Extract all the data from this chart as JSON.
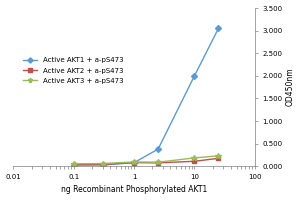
{
  "title": "",
  "xlabel": "ng Recombinant Phosphorylated AKT1",
  "ylabel": "OD450nm",
  "x_values": [
    0.1,
    0.3,
    1.0,
    2.5,
    10.0,
    25.0
  ],
  "akt1_y": [
    0.025,
    0.03,
    0.08,
    0.38,
    2.0,
    3.05
  ],
  "akt2_y": [
    0.035,
    0.038,
    0.08,
    0.075,
    0.11,
    0.175
  ],
  "akt3_y": [
    0.055,
    0.06,
    0.095,
    0.09,
    0.185,
    0.23
  ],
  "akt1_color": "#5B9BD5",
  "akt2_color": "#C0504D",
  "akt3_color": "#9BBB59",
  "akt1_label": "Active AKT1 + a-pS473",
  "akt2_label": "Active AKT2 + a-pS473",
  "akt3_label": "Active AKT3 + a-pS473",
  "ylim": [
    0.0,
    3.5
  ],
  "yticks": [
    0.0,
    0.5,
    1.0,
    1.5,
    2.0,
    2.5,
    3.0,
    3.5
  ],
  "ytick_labels": [
    "0.000",
    "0.500",
    "1.000",
    "1.500",
    "2.000",
    "2.500",
    "3.000",
    "3.500"
  ],
  "xlim": [
    0.01,
    100
  ],
  "xticks": [
    0.01,
    0.1,
    1,
    10,
    100
  ],
  "xtick_labels": [
    "0.01",
    "0.1",
    "1",
    "10",
    "100"
  ],
  "bg_color": "#FFFFFF",
  "plot_bg_color": "#FFFFFF",
  "legend_fontsize": 5.0,
  "axis_fontsize": 5.5,
  "tick_fontsize": 5.0,
  "linewidth": 1.0,
  "markersize_diamond": 3.0,
  "markersize_square": 3.0,
  "markersize_star": 4.0
}
